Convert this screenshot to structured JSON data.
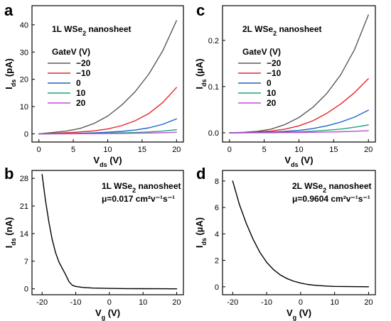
{
  "chart_data": [
    {
      "panel": "a",
      "type": "line",
      "title_main": "1L WSe",
      "title_sub": "2",
      "title_rest": " nanosheet",
      "xlabel_main": "V",
      "xlabel_sub": "ds",
      "xlabel_unit": " (V)",
      "ylabel_main": "I",
      "ylabel_sub": "ds",
      "ylabel_unit": " (pA)",
      "xlim": [
        -1,
        21
      ],
      "ylim": [
        -3,
        47
      ],
      "xticks": [
        0,
        5,
        10,
        15,
        20
      ],
      "yticks": [
        0,
        10,
        20,
        30,
        40
      ],
      "legend_title": "GateV (V)",
      "legend_position": "left",
      "series": [
        {
          "name": "−20",
          "color": "#5a5a5a",
          "x": [
            0,
            2,
            4,
            6,
            8,
            10,
            12,
            14,
            16,
            18,
            20
          ],
          "y": [
            0,
            0.5,
            1.0,
            2.0,
            3.8,
            6.5,
            10.5,
            15.5,
            22,
            30.5,
            41.5
          ]
        },
        {
          "name": "−10",
          "color": "#e8242a",
          "x": [
            0,
            2,
            4,
            6,
            8,
            10,
            12,
            14,
            16,
            18,
            20
          ],
          "y": [
            0,
            0.2,
            0.4,
            0.7,
            1.1,
            1.8,
            3.0,
            4.8,
            7.5,
            11.5,
            17
          ]
        },
        {
          "name": "0",
          "color": "#1a63c5",
          "x": [
            0,
            2,
            4,
            6,
            8,
            10,
            12,
            14,
            16,
            18,
            20
          ],
          "y": [
            0,
            0.05,
            0.1,
            0.2,
            0.35,
            0.6,
            0.9,
            1.4,
            2.2,
            3.5,
            5.5
          ]
        },
        {
          "name": "10",
          "color": "#17a673",
          "x": [
            0,
            2,
            4,
            6,
            8,
            10,
            12,
            14,
            16,
            18,
            20
          ],
          "y": [
            0,
            0.02,
            0.05,
            0.1,
            0.15,
            0.25,
            0.35,
            0.5,
            0.7,
            1.0,
            1.5
          ]
        },
        {
          "name": "20",
          "color": "#c34bd6",
          "x": [
            0,
            2,
            4,
            6,
            8,
            10,
            12,
            14,
            16,
            18,
            20
          ],
          "y": [
            0,
            0.01,
            0.02,
            0.04,
            0.07,
            0.1,
            0.15,
            0.22,
            0.3,
            0.42,
            0.6
          ]
        }
      ]
    },
    {
      "panel": "c",
      "type": "line",
      "title_main": "2L WSe",
      "title_sub": "2",
      "title_rest": " nanosheet",
      "xlabel_main": "V",
      "xlabel_sub": "ds",
      "xlabel_unit": " (V)",
      "ylabel_main": "I",
      "ylabel_sub": "ds",
      "ylabel_unit": " (µA)",
      "xlim": [
        -1,
        21
      ],
      "ylim": [
        -0.02,
        0.275
      ],
      "xticks": [
        0,
        5,
        10,
        15,
        20
      ],
      "yticks": [
        0.0,
        0.1,
        0.2
      ],
      "ytick_labels": [
        "0.0",
        "0.1",
        "0.2"
      ],
      "legend_title": "GateV (V)",
      "legend_position": "left",
      "series": [
        {
          "name": "−20",
          "color": "#5a5a5a",
          "x": [
            0,
            2,
            4,
            6,
            8,
            10,
            12,
            14,
            16,
            18,
            20
          ],
          "y": [
            0,
            0.001,
            0.003,
            0.008,
            0.018,
            0.033,
            0.055,
            0.085,
            0.125,
            0.18,
            0.255
          ]
        },
        {
          "name": "−10",
          "color": "#e8242a",
          "x": [
            0,
            2,
            4,
            6,
            8,
            10,
            12,
            14,
            16,
            18,
            20
          ],
          "y": [
            0,
            0.0005,
            0.0015,
            0.004,
            0.008,
            0.015,
            0.026,
            0.042,
            0.062,
            0.087,
            0.117
          ]
        },
        {
          "name": "0",
          "color": "#1a63c5",
          "x": [
            0,
            2,
            4,
            6,
            8,
            10,
            12,
            14,
            16,
            18,
            20
          ],
          "y": [
            0,
            0.0002,
            0.0006,
            0.0015,
            0.003,
            0.005,
            0.009,
            0.015,
            0.023,
            0.034,
            0.049
          ]
        },
        {
          "name": "10",
          "color": "#17a673",
          "x": [
            0,
            2,
            4,
            6,
            8,
            10,
            12,
            14,
            16,
            18,
            20
          ],
          "y": [
            0,
            0.0001,
            0.0003,
            0.0006,
            0.0012,
            0.002,
            0.0035,
            0.0055,
            0.008,
            0.012,
            0.017
          ]
        },
        {
          "name": "20",
          "color": "#c34bd6",
          "x": [
            0,
            2,
            4,
            6,
            8,
            10,
            12,
            14,
            16,
            18,
            20
          ],
          "y": [
            0,
            5e-05,
            0.0001,
            0.0002,
            0.0004,
            0.0007,
            0.0011,
            0.0016,
            0.0023,
            0.0033,
            0.0045
          ]
        }
      ]
    },
    {
      "panel": "b",
      "type": "line",
      "title_main": "1L WSe",
      "title_sub": "2",
      "title_rest": " nanosheet",
      "mobility": "μ=0.017 cm²v⁻¹s⁻¹",
      "xlabel_main": "V",
      "xlabel_sub": "g",
      "xlabel_unit": " (V)",
      "ylabel_main": "I",
      "ylabel_sub": "ds",
      "ylabel_unit": " (nA)",
      "xlim": [
        -23,
        22
      ],
      "ylim": [
        -1.5,
        30
      ],
      "xticks": [
        -20,
        -10,
        0,
        10,
        20
      ],
      "yticks": [
        0,
        7,
        14,
        21,
        28
      ],
      "series": [
        {
          "name": "",
          "color": "#000000",
          "x": [
            -20,
            -19,
            -18,
            -17,
            -16,
            -15,
            -14,
            -13,
            -12,
            -11,
            -10,
            -8,
            -5,
            0,
            5,
            10,
            15,
            20
          ],
          "y": [
            29,
            22.5,
            17,
            12.5,
            9.2,
            6.8,
            5.2,
            3.6,
            1.8,
            0.9,
            0.6,
            0.35,
            0.2,
            0.1,
            0.05,
            0.03,
            0.02,
            0.0
          ]
        }
      ]
    },
    {
      "panel": "d",
      "type": "line",
      "title_main": "2L WSe",
      "title_sub": "2",
      "title_rest": " nanosheet",
      "mobility": "μ=0.9604 cm²v⁻¹s⁻¹",
      "xlabel_main": "V",
      "xlabel_sub": "g",
      "xlabel_unit": " (V)",
      "ylabel_main": "I",
      "ylabel_sub": "ds",
      "ylabel_unit": " (µA)",
      "xlim": [
        -23,
        22
      ],
      "ylim": [
        -0.6,
        8.8
      ],
      "xticks": [
        -20,
        -10,
        0,
        10,
        20
      ],
      "yticks": [
        0,
        2,
        4,
        6,
        8
      ],
      "series": [
        {
          "name": "",
          "color": "#000000",
          "x": [
            -20,
            -18,
            -16,
            -14,
            -12,
            -10,
            -8,
            -6,
            -4,
            -2,
            0,
            2,
            4,
            6,
            8,
            10,
            15,
            20
          ],
          "y": [
            8.0,
            6.2,
            4.8,
            3.6,
            2.6,
            1.85,
            1.3,
            0.9,
            0.62,
            0.42,
            0.28,
            0.18,
            0.12,
            0.08,
            0.05,
            0.03,
            0.01,
            0.0
          ]
        }
      ]
    }
  ]
}
